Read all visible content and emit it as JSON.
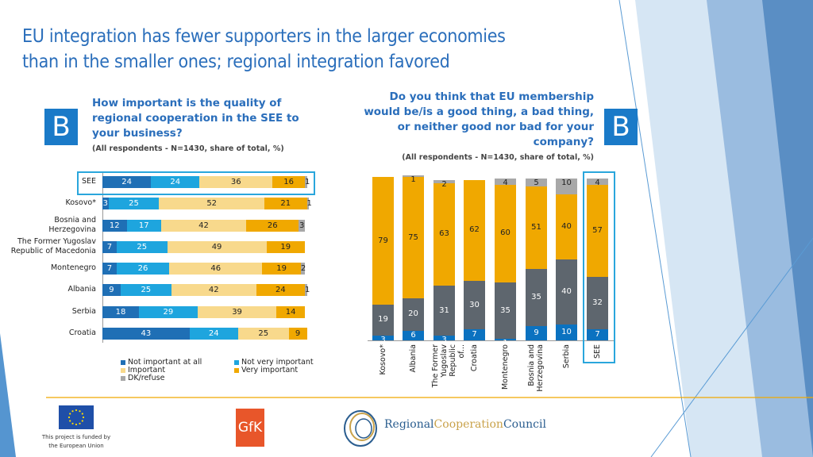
{
  "title": [
    "EU integration has fewer supporters in the larger economies",
    "than in the smaller ones; regional integration favored"
  ],
  "badge_letter": "B",
  "left": {
    "question": [
      "How important is the quality of",
      "regional cooperation in the SEE to",
      "your business?"
    ],
    "note": "(All respondents - N=1430, share of total, %)",
    "chart_data": {
      "type": "bar",
      "orientation": "horizontal",
      "stacked": true,
      "xlim": [
        0,
        100
      ],
      "categories": [
        "SEE",
        "Kosovo*",
        "Bosnia and Herzegovina",
        "The Former Yugoslav Republic of Macedonia",
        "Montenegro",
        "Albania",
        "Serbia",
        "Croatia"
      ],
      "category_lines": [
        [
          "SEE"
        ],
        [
          "Kosovo*"
        ],
        [
          "Bosnia and",
          "Herzegovina"
        ],
        [
          "The Former Yugoslav",
          "Republic of Macedonia"
        ],
        [
          "Montenegro"
        ],
        [
          "Albania"
        ],
        [
          "Serbia"
        ],
        [
          "Croatia"
        ]
      ],
      "series": [
        {
          "name": "Not important at all",
          "color": "#1f6fb5",
          "values": [
            24,
            3,
            12,
            7,
            7,
            9,
            18,
            43
          ]
        },
        {
          "name": "Not very important",
          "color": "#1ea5de",
          "values": [
            24,
            25,
            17,
            25,
            26,
            25,
            29,
            24
          ]
        },
        {
          "name": "Important",
          "color": "#f8d98c",
          "values": [
            36,
            52,
            42,
            49,
            46,
            42,
            39,
            25
          ]
        },
        {
          "name": "Very important",
          "color": "#f0a800",
          "values": [
            16,
            21,
            26,
            19,
            19,
            24,
            14,
            9
          ]
        },
        {
          "name": "DK/refuse",
          "color": "#a8a8a8",
          "values": [
            1,
            1,
            3,
            0,
            2,
            1,
            0,
            0
          ]
        }
      ],
      "legend": "bottom",
      "highlight": "SEE"
    }
  },
  "right": {
    "question": [
      "Do you think that EU membership",
      "would be/is a good thing, a bad thing,",
      "or neither good nor bad for your",
      "company?"
    ],
    "note": "(All respondents - N=1430, share of total, %)",
    "chart_data": {
      "type": "bar",
      "orientation": "vertical",
      "stacked": true,
      "ylim": [
        0,
        100
      ],
      "categories": [
        "Kosovo*",
        "Albania",
        "The Former Yugoslav Republic of...",
        "Croatia",
        "Montenegro",
        "Bosnia and Herzegovina",
        "Serbia",
        "SEE"
      ],
      "category_lines": [
        [
          "Kosovo*"
        ],
        [
          "Albania"
        ],
        [
          "The Former",
          "Yugoslav",
          "Republic of..."
        ],
        [
          "Croatia"
        ],
        [
          "Montenegro"
        ],
        [
          "Bosnia and",
          "Herzegovina"
        ],
        [
          "Serbia"
        ],
        [
          "SEE"
        ]
      ],
      "series": [
        {
          "color": "#0b72c0",
          "values": [
            3,
            6,
            3,
            7,
            1,
            9,
            10,
            7
          ]
        },
        {
          "color": "#5e666e",
          "values": [
            19,
            20,
            31,
            30,
            35,
            35,
            40,
            32
          ]
        },
        {
          "color": "#f0a800",
          "values": [
            79,
            75,
            63,
            62,
            60,
            51,
            40,
            57
          ]
        },
        {
          "color": "#a8a8a8",
          "values": [
            null,
            1,
            2,
            null,
            4,
            5,
            10,
            4
          ]
        }
      ],
      "highlight": "SEE"
    }
  },
  "footer": {
    "eu_note": [
      "This project is funded by",
      "the European Union"
    ],
    "gfk_logo": "GfK",
    "rcc_logo": [
      "Regional",
      "Cooperation",
      "Council"
    ]
  }
}
